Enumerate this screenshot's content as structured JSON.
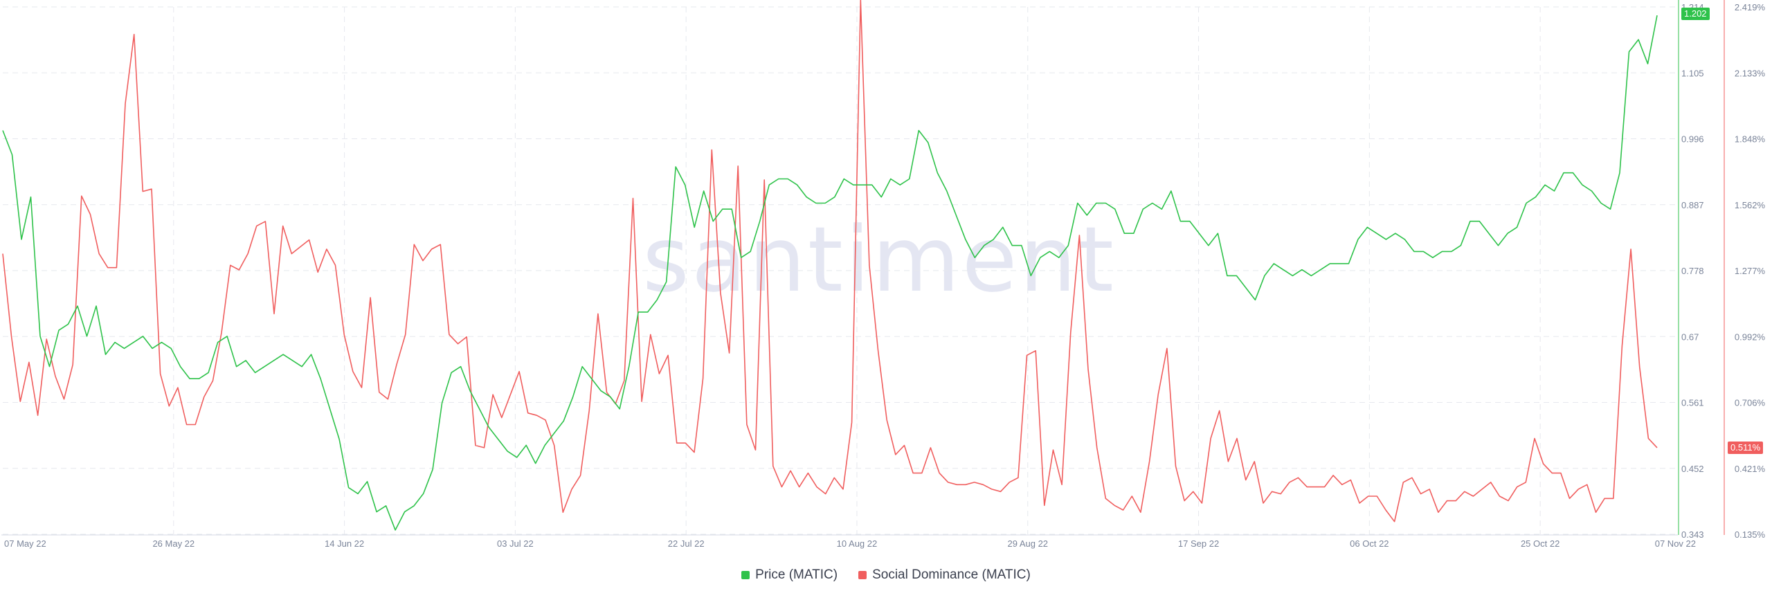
{
  "colors": {
    "price": "#2ec24a",
    "social": "#f05e5e",
    "grid": "#e6e8ee",
    "axis_text": "#7a8499"
  },
  "watermark": "santiment",
  "legend": {
    "price_label": "Price (MATIC)",
    "social_label": "Social Dominance (MATIC)"
  },
  "badges": {
    "price_last": "1.202",
    "social_last": "0.511%"
  },
  "chart_data": {
    "type": "line",
    "x_tick_labels": [
      "07 May 22",
      "26 May 22",
      "14 Jun 22",
      "03 Jul 22",
      "22 Jul 22",
      "10 Aug 22",
      "29 Aug 22",
      "17 Sep 22",
      "06 Oct 22",
      "25 Oct 22",
      "07 Nov 22"
    ],
    "y_left_ticks": [
      "1.214",
      "1.105",
      "0.996",
      "0.887",
      "0.778",
      "0.67",
      "0.561",
      "0.452",
      "0.343"
    ],
    "y_right_ticks": [
      "2.419%",
      "2.133%",
      "1.848%",
      "1.562%",
      "1.277%",
      "0.992%",
      "0.706%",
      "0.421%",
      "0.135%"
    ],
    "y_left_range": [
      0.343,
      1.214
    ],
    "y_right_range": [
      0.135,
      2.419
    ],
    "x_range_days": [
      0,
      184
    ],
    "series": [
      {
        "name": "Price (MATIC)",
        "axis": "left",
        "values": [
          1.01,
          0.97,
          0.83,
          0.9,
          0.67,
          0.62,
          0.68,
          0.69,
          0.72,
          0.67,
          0.72,
          0.64,
          0.66,
          0.65,
          0.66,
          0.67,
          0.65,
          0.66,
          0.65,
          0.62,
          0.6,
          0.6,
          0.61,
          0.66,
          0.67,
          0.62,
          0.63,
          0.61,
          0.62,
          0.63,
          0.64,
          0.63,
          0.62,
          0.64,
          0.6,
          0.55,
          0.5,
          0.42,
          0.41,
          0.43,
          0.38,
          0.39,
          0.35,
          0.38,
          0.39,
          0.41,
          0.45,
          0.56,
          0.61,
          0.62,
          0.58,
          0.55,
          0.52,
          0.5,
          0.48,
          0.47,
          0.49,
          0.46,
          0.49,
          0.51,
          0.53,
          0.57,
          0.62,
          0.6,
          0.58,
          0.57,
          0.55,
          0.62,
          0.71,
          0.71,
          0.73,
          0.76,
          0.95,
          0.92,
          0.85,
          0.91,
          0.86,
          0.88,
          0.88,
          0.8,
          0.81,
          0.86,
          0.92,
          0.93,
          0.93,
          0.92,
          0.9,
          0.89,
          0.89,
          0.9,
          0.93,
          0.92,
          0.92,
          0.92,
          0.9,
          0.93,
          0.92,
          0.93,
          1.01,
          0.99,
          0.94,
          0.91,
          0.87,
          0.83,
          0.8,
          0.82,
          0.83,
          0.85,
          0.82,
          0.82,
          0.77,
          0.8,
          0.81,
          0.8,
          0.82,
          0.89,
          0.87,
          0.89,
          0.89,
          0.88,
          0.84,
          0.84,
          0.88,
          0.89,
          0.88,
          0.91,
          0.86,
          0.86,
          0.84,
          0.82,
          0.84,
          0.77,
          0.77,
          0.75,
          0.73,
          0.77,
          0.79,
          0.78,
          0.77,
          0.78,
          0.77,
          0.78,
          0.79,
          0.79,
          0.79,
          0.83,
          0.85,
          0.84,
          0.83,
          0.84,
          0.83,
          0.81,
          0.81,
          0.8,
          0.81,
          0.81,
          0.82,
          0.86,
          0.86,
          0.84,
          0.82,
          0.84,
          0.85,
          0.89,
          0.9,
          0.92,
          0.91,
          0.94,
          0.94,
          0.92,
          0.91,
          0.89,
          0.88,
          0.94,
          1.14,
          1.16,
          1.12,
          1.2
        ]
      },
      {
        "name": "Social Dominance (MATIC)",
        "axis": "right",
        "values": [
          1.35,
          0.99,
          0.71,
          0.88,
          0.65,
          0.98,
          0.82,
          0.72,
          0.87,
          1.6,
          1.52,
          1.35,
          1.29,
          1.29,
          2.0,
          2.3,
          1.62,
          1.63,
          0.83,
          0.69,
          0.77,
          0.61,
          0.61,
          0.73,
          0.8,
          1.01,
          1.3,
          1.28,
          1.35,
          1.47,
          1.49,
          1.09,
          1.47,
          1.35,
          1.38,
          1.41,
          1.27,
          1.37,
          1.3,
          1.0,
          0.84,
          0.77,
          1.16,
          0.75,
          0.72,
          0.87,
          1.0,
          1.39,
          1.32,
          1.37,
          1.39,
          1.0,
          0.96,
          0.99,
          0.52,
          0.51,
          0.74,
          0.64,
          0.74,
          0.84,
          0.66,
          0.65,
          0.63,
          0.52,
          0.23,
          0.33,
          0.39,
          0.67,
          1.09,
          0.75,
          0.7,
          0.8,
          1.59,
          0.71,
          1.0,
          0.83,
          0.91,
          0.53,
          0.53,
          0.49,
          0.81,
          1.8,
          1.18,
          0.92,
          1.73,
          0.61,
          0.5,
          1.67,
          0.43,
          0.34,
          0.41,
          0.34,
          0.4,
          0.34,
          0.31,
          0.38,
          0.33,
          0.62,
          2.45,
          1.3,
          0.93,
          0.63,
          0.48,
          0.52,
          0.4,
          0.4,
          0.51,
          0.4,
          0.36,
          0.35,
          0.35,
          0.36,
          0.35,
          0.33,
          0.32,
          0.36,
          0.38,
          0.91,
          0.93,
          0.26,
          0.5,
          0.35,
          1.01,
          1.43,
          0.85,
          0.51,
          0.29,
          0.26,
          0.24,
          0.3,
          0.23,
          0.45,
          0.74,
          0.94,
          0.43,
          0.28,
          0.32,
          0.27,
          0.55,
          0.67,
          0.45,
          0.55,
          0.37,
          0.45,
          0.27,
          0.32,
          0.31,
          0.36,
          0.38,
          0.34,
          0.34,
          0.34,
          0.39,
          0.35,
          0.37,
          0.27,
          0.3,
          0.3,
          0.24,
          0.19,
          0.36,
          0.38,
          0.31,
          0.33,
          0.23,
          0.28,
          0.28,
          0.32,
          0.3,
          0.33,
          0.36,
          0.3,
          0.28,
          0.34,
          0.36,
          0.55,
          0.44,
          0.4,
          0.4,
          0.29,
          0.33,
          0.35,
          0.23,
          0.29,
          0.29,
          0.95,
          1.37,
          0.86,
          0.55,
          0.51
        ]
      }
    ]
  }
}
